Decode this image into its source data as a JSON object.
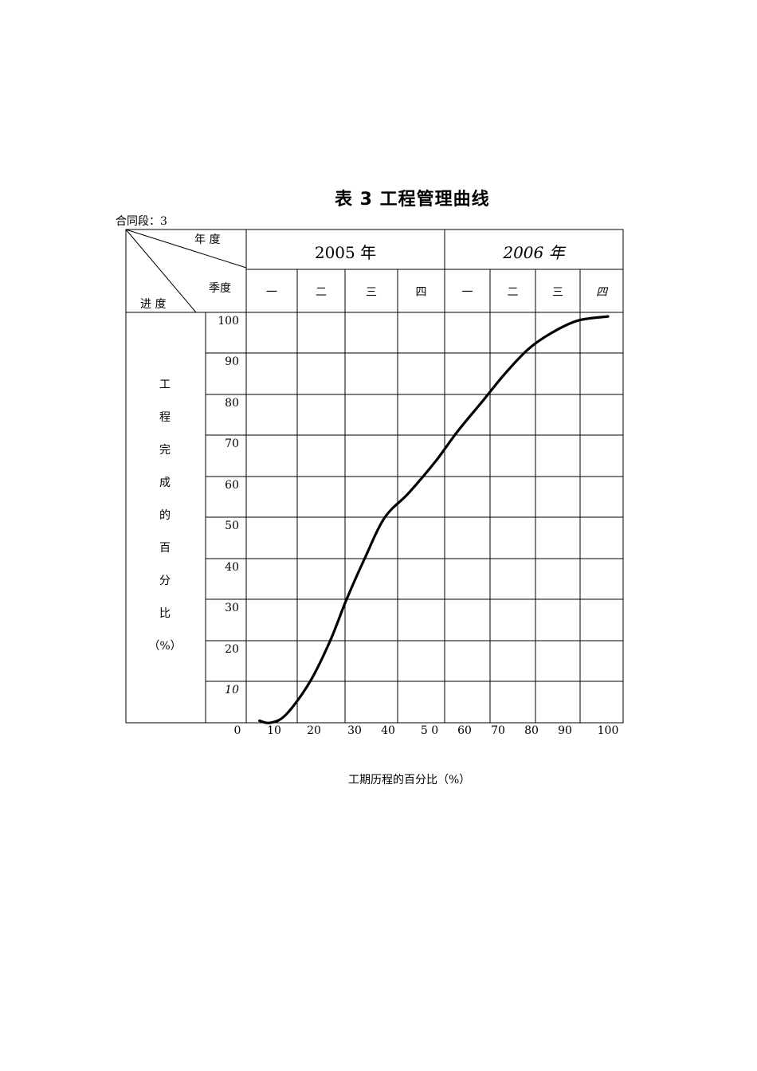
{
  "title": "表 3    工程管理曲线",
  "contract": "合同段：3",
  "header": {
    "corner_year": "年  度",
    "corner_quarter": "季度",
    "corner_progress": "进 度",
    "years": [
      "2005 年",
      "2006 年"
    ],
    "quarters": [
      "一",
      "二",
      "三",
      "四",
      "一",
      "二",
      "三",
      "四"
    ]
  },
  "y_axis_label_chars": [
    "工",
    "程",
    "完",
    "成",
    "的",
    "百",
    "分",
    "比",
    "（%）"
  ],
  "y_ticks": [
    "100",
    "90",
    "80",
    "70",
    "60",
    "50",
    "40",
    "30",
    "20",
    "10"
  ],
  "x_ticks": [
    "0",
    "10",
    "20",
    "30",
    "40",
    "5 0",
    "60",
    "70",
    "80",
    "90",
    "100"
  ],
  "x_axis_label": "工期历程的百分比（%）",
  "chart_data": {
    "type": "line",
    "xlabel": "工期历程的百分比（%）",
    "ylabel": "工程完成的百分比（%）",
    "xlim": [
      0,
      100
    ],
    "ylim": [
      0,
      100
    ],
    "series": [
      {
        "x": [
          6,
          9,
          13,
          19,
          24,
          28,
          33,
          39,
          45,
          52,
          58,
          65,
          72,
          79,
          86,
          93,
          100
        ],
        "y": [
          0.5,
          0,
          2,
          10,
          20,
          30,
          40,
          50,
          56,
          64,
          71,
          78,
          85,
          91,
          95,
          98,
          99
        ]
      }
    ]
  }
}
